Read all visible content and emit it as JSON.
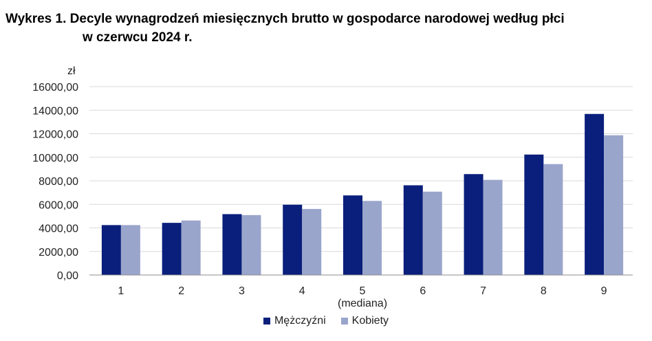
{
  "title": {
    "line1": "Wykres 1. Decyle wynagrodzeń miesięcznych brutto w gospodarce narodowej według płci",
    "line2": "w czerwcu 2024 r."
  },
  "chart_data": {
    "type": "bar",
    "title": "Wykres 1. Decyle wynagrodzeń miesięcznych brutto w gospodarce narodowej według płci w czerwcu 2024 r.",
    "ylabel": "zł",
    "xlabel": "",
    "categories": [
      "1",
      "2",
      "3",
      "4",
      "5",
      "6",
      "7",
      "8",
      "9"
    ],
    "category_sublabels": {
      "5": "(mediana)"
    },
    "ylim": [
      0,
      16000
    ],
    "yticks": [
      0,
      2000,
      4000,
      6000,
      8000,
      10000,
      12000,
      14000,
      16000
    ],
    "ytick_labels": [
      "0,00",
      "2000,00",
      "4000,00",
      "6000,00",
      "8000,00",
      "10000,00",
      "12000,00",
      "14000,00",
      "16000,00"
    ],
    "grid": true,
    "legend_position": "bottom",
    "series": [
      {
        "name": "Mężczyźni",
        "color": "#0a1f7c",
        "values": [
          4240,
          4430,
          5170,
          5970,
          6760,
          7620,
          8570,
          10230,
          13680
        ]
      },
      {
        "name": "Kobiety",
        "color": "#9aa5cc",
        "values": [
          4240,
          4630,
          5090,
          5610,
          6290,
          7080,
          8080,
          9420,
          11870
        ]
      }
    ]
  }
}
